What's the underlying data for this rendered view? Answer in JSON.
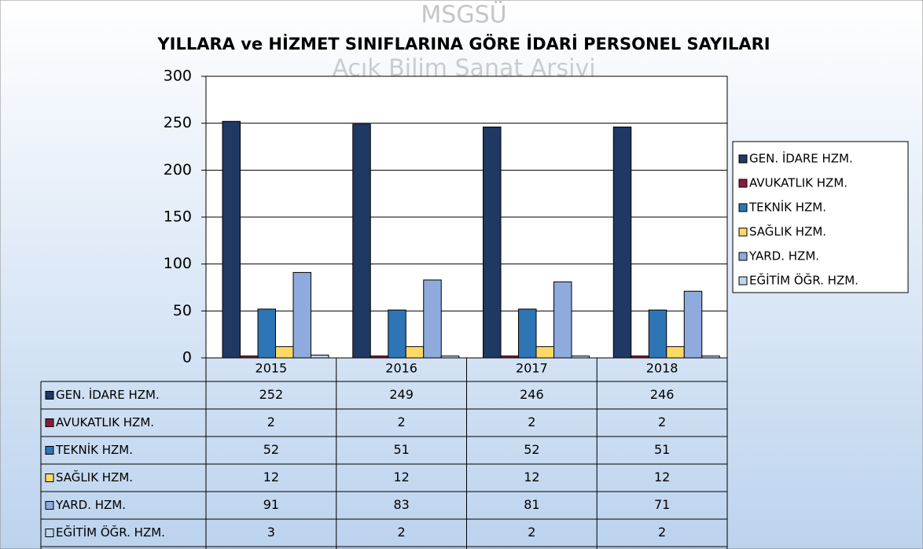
{
  "chart_data": {
    "type": "bar",
    "title": "YILLARA ve HİZMET SINIFLARINA GÖRE İDARİ PERSONEL SAYILARI",
    "watermark": [
      "MSGSÜ",
      "Açık Bilim Sanat Arşivi"
    ],
    "categories": [
      "2015",
      "2016",
      "2017",
      "2018"
    ],
    "series": [
      {
        "name": "GEN. İDARE HZM.",
        "color": "#1f3864",
        "values": [
          252,
          249,
          246,
          246
        ]
      },
      {
        "name": "AVUKATLIK HZM.",
        "color": "#8b1a3a",
        "values": [
          2,
          2,
          2,
          2
        ]
      },
      {
        "name": "TEKNİK HZM.",
        "color": "#2e75b6",
        "values": [
          52,
          51,
          52,
          51
        ]
      },
      {
        "name": "SAĞLIK HZM.",
        "color": "#ffd966",
        "values": [
          12,
          12,
          12,
          12
        ]
      },
      {
        "name": "YARD. HZM.",
        "color": "#8faadc",
        "values": [
          91,
          83,
          81,
          71
        ]
      },
      {
        "name": "EĞİTİM ÖĞR. HZM.",
        "color": "#bdd7ee",
        "values": [
          3,
          2,
          2,
          2
        ]
      }
    ],
    "ylim": [
      0,
      300
    ],
    "yticks": [
      0,
      50,
      100,
      150,
      200,
      250,
      300
    ],
    "grid": true,
    "legend": "right"
  }
}
